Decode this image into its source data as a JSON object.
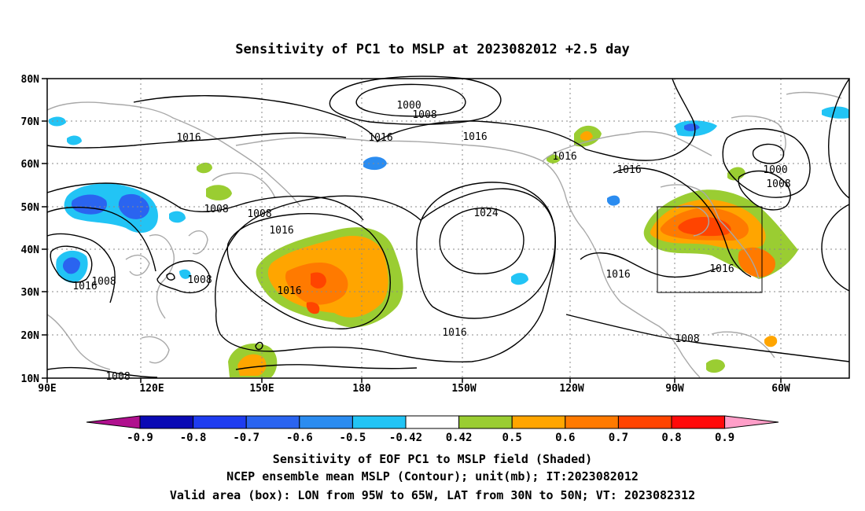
{
  "title": "Sensitivity of PC1 to MSLP at 2023082012 +2.5 day",
  "map": {
    "lat_labels": [
      "80N",
      "70N",
      "60N",
      "50N",
      "40N",
      "30N",
      "20N",
      "10N"
    ],
    "lon_labels": [
      "90E",
      "120E",
      "150E",
      "180",
      "150W",
      "120W",
      "90W",
      "60W"
    ],
    "contour_labels": [
      "1000",
      "1008",
      "1016",
      "1016",
      "1016",
      "1016",
      "1016",
      "1008",
      "1008",
      "1016",
      "1008",
      "1008",
      "1016",
      "1024",
      "1016",
      "1016",
      "1016",
      "1000",
      "1008",
      "1016",
      "1008",
      "1008"
    ],
    "valid_box": {
      "lon_west": "95W",
      "lon_east": "65W",
      "lat_south": "30N",
      "lat_north": "50N"
    }
  },
  "colorbar": {
    "tick_labels": [
      "-0.9",
      "-0.8",
      "-0.7",
      "-0.6",
      "-0.5",
      "-0.42",
      "0.42",
      "0.5",
      "0.6",
      "0.7",
      "0.8",
      "0.9"
    ],
    "colors": [
      "#b0108e",
      "#0a0ab4",
      "#1e3cf0",
      "#2a64f0",
      "#2b8cf0",
      "#22c4f5",
      "#ffffff",
      "#9acd32",
      "#ffa500",
      "#ff7a00",
      "#ff4400",
      "#ff0a0a",
      "#ff9ec8"
    ]
  },
  "captions": [
    "Sensitivity of EOF PC1 to MSLP field (Shaded)",
    "NCEP ensemble mean MSLP (Contour); unit(mb); IT:2023082012",
    "Valid area (box): LON from 95W to 65W, LAT from 30N to 50N; VT: 2023082312"
  ]
}
